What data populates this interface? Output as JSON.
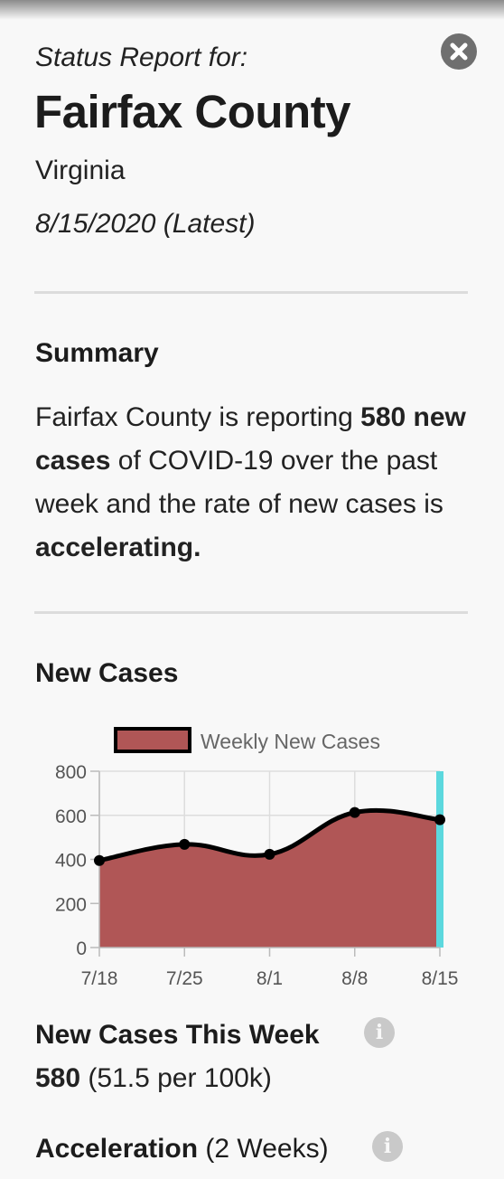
{
  "header": {
    "subtitle": "Status Report for:",
    "title": "Fairfax County",
    "state": "Virginia",
    "date": "8/15/2020 (Latest)",
    "close_icon": "close-circle-icon"
  },
  "summary": {
    "heading": "Summary",
    "text_part1": "Fairfax County is reporting ",
    "bold_cases": "580 new cases",
    "text_part2": " of COVID-19 over the past week and the rate of new cases is ",
    "bold_rate": "accelerating."
  },
  "new_cases": {
    "heading": "New Cases",
    "this_week_label": "New Cases This Week",
    "this_week_value": "580",
    "this_week_rate": "(51.5 per 100k)",
    "acceleration_label": "Acceleration",
    "acceleration_period": "(2 Weeks)",
    "info_icon": "info-icon"
  },
  "colors": {
    "area_fill": "#b05656",
    "line": "#000000",
    "highlight": "#5cd8de"
  },
  "chart_data": {
    "type": "area",
    "title": "",
    "xlabel": "",
    "ylabel": "",
    "categories": [
      "7/18",
      "7/25",
      "8/1",
      "8/8",
      "8/15"
    ],
    "series": [
      {
        "name": "Weekly New Cases",
        "values": [
          395,
          468,
          423,
          613,
          580
        ]
      }
    ],
    "ylim": [
      0,
      800
    ],
    "yticks": [
      0,
      200,
      400,
      600,
      800
    ],
    "grid": true,
    "legend": "top",
    "highlight_category": "8/15"
  }
}
